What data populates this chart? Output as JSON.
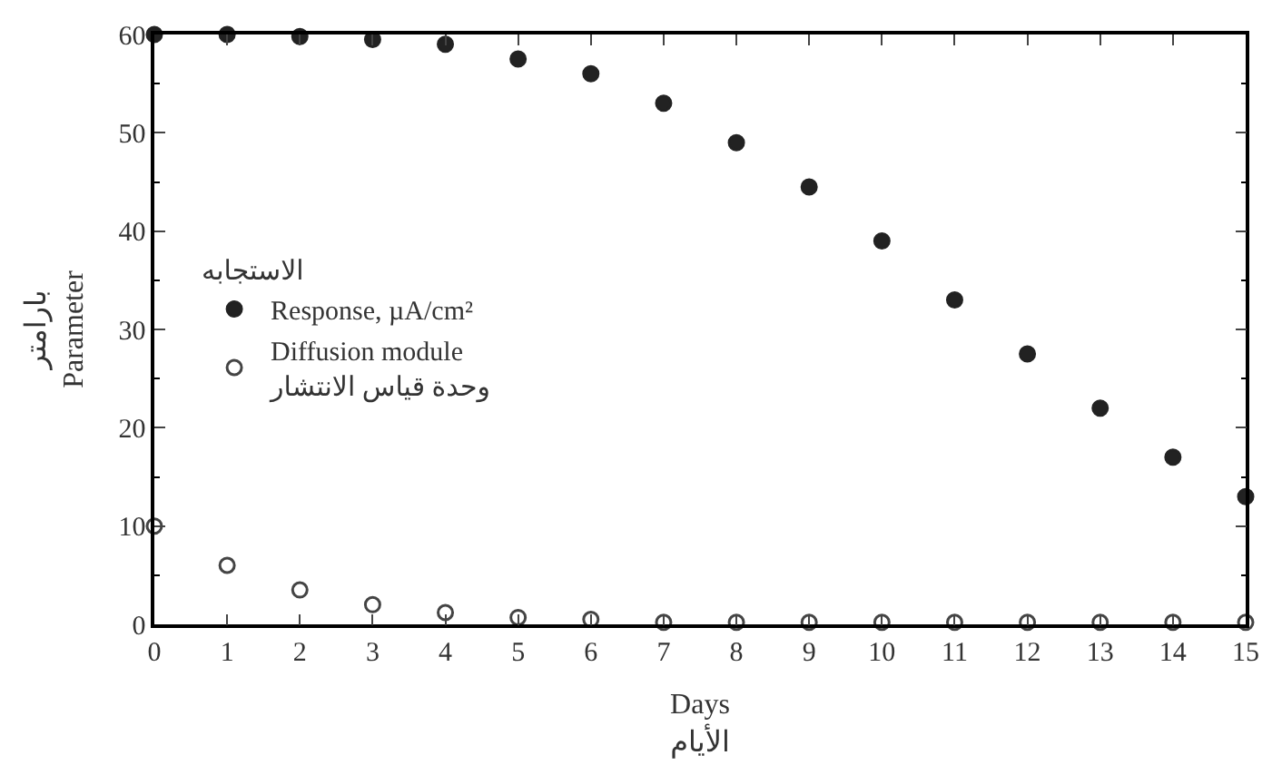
{
  "chart_data": {
    "type": "scatter",
    "xlabel": "Days\nالأيام",
    "ylabel": "بارامتر\nParameter",
    "legend_title": "الاستجابه",
    "x": [
      0,
      1,
      2,
      3,
      4,
      5,
      6,
      7,
      8,
      9,
      10,
      11,
      12,
      13,
      14,
      15
    ],
    "series": [
      {
        "name": "Response, µA/cm²",
        "color": "#222222",
        "marker": "circle",
        "values": [
          60,
          60,
          59.8,
          59.5,
          59,
          57.5,
          56,
          53,
          49,
          44.5,
          39,
          33,
          27.5,
          22,
          17,
          13
        ]
      },
      {
        "name": "Diffusion module\nوحدة قياس الانتشار",
        "color": "#444444",
        "marker": "circle-open",
        "values": [
          10,
          6,
          3.5,
          2,
          1.2,
          0.7,
          0.5,
          0.2,
          0.2,
          0.2,
          0.2,
          0.2,
          0.2,
          0.2,
          0.2,
          0.2
        ]
      }
    ],
    "xlim": [
      0,
      15
    ],
    "xticks": [
      0,
      1,
      2,
      3,
      4,
      5,
      6,
      7,
      8,
      9,
      10,
      11,
      12,
      13,
      14,
      15
    ],
    "ylim": [
      0,
      60
    ],
    "yticks": [
      0,
      10,
      20,
      30,
      40,
      50,
      60
    ],
    "legend": "left"
  }
}
